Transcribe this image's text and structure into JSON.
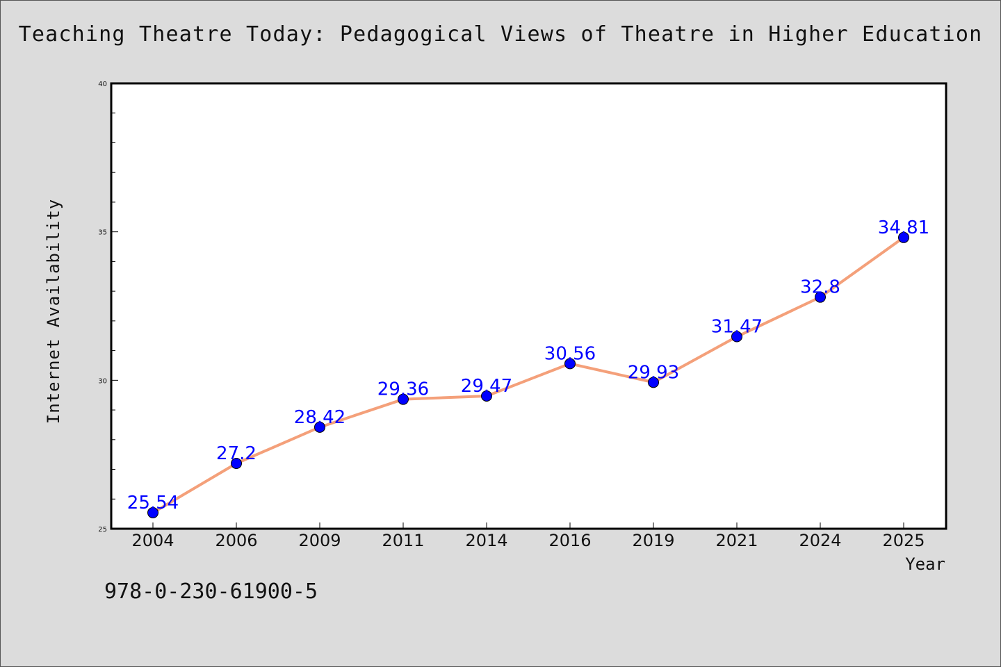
{
  "chart_data": {
    "type": "line",
    "title": "Teaching Theatre Today: Pedagogical Views of Theatre in Higher Education",
    "xlabel": "Year",
    "ylabel": "Internet Availability",
    "ylim": [
      25,
      40
    ],
    "y_ticks": [
      "25",
      "30",
      "35",
      "40"
    ],
    "categories": [
      "2004",
      "2006",
      "2009",
      "2011",
      "2014",
      "2016",
      "2019",
      "2021",
      "2024",
      "2025"
    ],
    "series": [
      {
        "values": [
          25.54,
          27.2,
          28.42,
          29.36,
          29.47,
          30.56,
          29.93,
          31.47,
          32.8,
          34.81
        ],
        "labels": [
          "25.54",
          "27.2",
          "28.42",
          "29.36",
          "29.47",
          "30.56",
          "29.93",
          "31.47",
          "32.8",
          "34.81"
        ]
      }
    ],
    "colors": {
      "line": "#f4a07a",
      "marker": "#0000ff",
      "label": "#0000ff",
      "plot_bg": "#ffffff",
      "page_bg": "#dcdcdc"
    },
    "grid": false,
    "legend": "none"
  },
  "footer_text": "978-0-230-61900-5"
}
